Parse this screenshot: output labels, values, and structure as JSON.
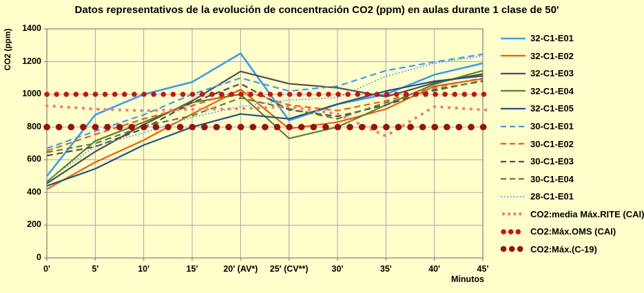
{
  "chart_data": {
    "type": "line",
    "title": "Datos representativos de la evolución de concentración CO2 (ppm) en aulas durante 1 clase de 50'",
    "xlabel": "Minutos",
    "ylabel": "CO2 (ppm)",
    "ylim": [
      0,
      1400
    ],
    "ytick_step": 200,
    "yticks": [
      "0",
      "200",
      "400",
      "600",
      "800",
      "1000",
      "1200",
      "1400"
    ],
    "categories": [
      "0'",
      "5'",
      "10'",
      "15'",
      "20' (AV*)",
      "25' (CV**)",
      "30'",
      "35'",
      "40'",
      "45'"
    ],
    "grid": true,
    "legend_position": "right",
    "colors": {
      "background": "#FFFFCB",
      "gridline": "#A6A6A6",
      "axis_border": "#808080",
      "text": "#000000"
    },
    "series": [
      {
        "name": "32-C1-E01",
        "color": "#3E9BF0",
        "style": "solid",
        "width": 2.6,
        "values": [
          500,
          875,
          1000,
          1075,
          1250,
          840,
          940,
          1000,
          1120,
          1190
        ]
      },
      {
        "name": "32-C1-E02",
        "color": "#EA5E10",
        "style": "solid",
        "width": 2.2,
        "values": [
          420,
          585,
          720,
          880,
          1030,
          790,
          830,
          910,
          1050,
          1095
        ]
      },
      {
        "name": "32-C1-E03",
        "color": "#4D4D4D",
        "style": "solid",
        "width": 2.2,
        "values": [
          455,
          650,
          815,
          960,
          1140,
          1065,
          1040,
          985,
          1070,
          1125
        ]
      },
      {
        "name": "32-C1-E04",
        "color": "#5E7D33",
        "style": "solid",
        "width": 2.2,
        "values": [
          465,
          715,
          830,
          950,
          1000,
          730,
          800,
          935,
          1062,
          1145
        ]
      },
      {
        "name": "32-C1-E05",
        "color": "#24527E",
        "style": "solid",
        "width": 2.2,
        "values": [
          440,
          545,
          690,
          800,
          880,
          850,
          940,
          1020,
          1080,
          1113
        ]
      },
      {
        "name": "30-C1-E01",
        "color": "#3E9BF0",
        "style": "dashed",
        "width": 2.2,
        "values": [
          670,
          775,
          875,
          1000,
          1100,
          1020,
          1050,
          1145,
          1198,
          1245
        ]
      },
      {
        "name": "30-C1-E02",
        "color": "#EA5E10",
        "style": "dashed",
        "width": 2.2,
        "values": [
          655,
          755,
          850,
          930,
          1025,
          935,
          900,
          960,
          1042,
          1100
        ]
      },
      {
        "name": "30-C1-E03",
        "color": "#4D4D4D",
        "style": "dashed",
        "width": 2.2,
        "values": [
          625,
          680,
          790,
          950,
          1065,
          905,
          865,
          935,
          1030,
          1080
        ]
      },
      {
        "name": "30-C1-E04",
        "color": "#5E7D33",
        "style": "dashed",
        "width": 2.2,
        "values": [
          645,
          700,
          805,
          870,
          978,
          912,
          850,
          950,
          1022,
          1085
        ]
      },
      {
        "name": "28-C1-E01",
        "color": "#3E9BF0",
        "style": "dotted",
        "width": 1.7,
        "values": [
          470,
          685,
          765,
          860,
          925,
          965,
          980,
          1110,
          1190,
          1235
        ]
      },
      {
        "name": "CO2:media Máx.RITE (CAI)",
        "color": "#F08080",
        "style": "dot-small",
        "width": 4.5,
        "extend_right": true,
        "values": [
          930,
          910,
          900,
          908,
          912,
          925,
          880,
          745,
          925,
          905
        ]
      },
      {
        "name": "CO2:Máx.OMS (CAI)",
        "color": "#CC1212",
        "style": "dot-medium",
        "width": 7.5,
        "extend_right": true,
        "values": [
          1000,
          1000,
          1000,
          1000,
          1000,
          1000,
          1000,
          1000,
          1000,
          1000
        ]
      },
      {
        "name": "CO2:Máx.(C-19)",
        "color": "#9A1111",
        "style": "dot-large",
        "width": 9.5,
        "extend_right": true,
        "values": [
          800,
          800,
          800,
          800,
          800,
          800,
          800,
          800,
          800,
          800
        ]
      }
    ]
  }
}
